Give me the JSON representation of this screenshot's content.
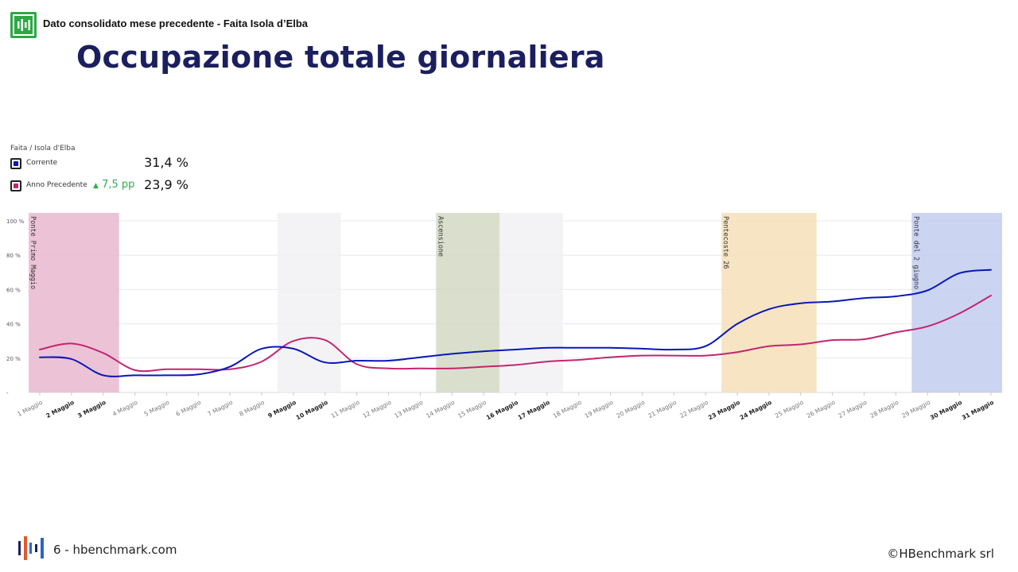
{
  "header": {
    "text": "Dato consolidato mese precedente - Faita Isola d’Elba",
    "title": "Occupazione totale giornaliera"
  },
  "legend": {
    "title": "Faita / Isola d'Elba",
    "items": [
      {
        "label": "Corrente",
        "value": "31,4 %",
        "color": "#0a17b8",
        "delta": ""
      },
      {
        "label": "Anno Precedente",
        "value": "23,9 %",
        "color": "#c4246f",
        "delta": "7,5 pp",
        "delta_icon": "triangle-up-icon"
      }
    ]
  },
  "chart_data": {
    "type": "line",
    "x": [
      "1 Maggio",
      "2 Maggio",
      "3 Maggio",
      "4 Maggio",
      "5 Maggio",
      "6 Maggio",
      "7 Maggio",
      "8 Maggio",
      "9 Maggio",
      "10 Maggio",
      "11 Maggio",
      "12 Maggio",
      "13 Maggio",
      "14 Maggio",
      "15 Maggio",
      "16 Maggio",
      "17 Maggio",
      "18 Maggio",
      "19 Maggio",
      "20 Maggio",
      "21 Maggio",
      "22 Maggio",
      "23 Maggio",
      "24 Maggio",
      "25 Maggio",
      "26 Maggio",
      "27 Maggio",
      "28 Maggio",
      "29 Maggio",
      "30 Maggio",
      "31 Maggio"
    ],
    "bold_ticks": [
      "2 Maggio",
      "3 Maggio",
      "9 Maggio",
      "10 Maggio",
      "16 Maggio",
      "17 Maggio",
      "23 Maggio",
      "24 Maggio",
      "30 Maggio",
      "31 Maggio"
    ],
    "y_ticks": [
      {
        "v": 0,
        "label": "-"
      },
      {
        "v": 20,
        "label": "20 %"
      },
      {
        "v": 40,
        "label": "40 %"
      },
      {
        "v": 60,
        "label": "60 %"
      },
      {
        "v": 80,
        "label": "80 %"
      },
      {
        "v": 100,
        "label": "100 %"
      }
    ],
    "ylim": [
      0,
      100
    ],
    "grid": true,
    "series": [
      {
        "name": "Corrente",
        "color": "#0a17b8",
        "values": [
          20.5,
          19.5,
          10,
          10,
          10,
          10.5,
          15,
          25.5,
          25.5,
          17.5,
          18.5,
          18.5,
          20.5,
          22.5,
          24,
          25,
          26,
          26,
          26,
          25.5,
          25,
          27,
          40,
          48.5,
          52,
          53,
          55,
          56,
          59.5,
          69.5,
          71.5
        ]
      },
      {
        "name": "Anno Precedente",
        "color": "#c4246f",
        "values": [
          25,
          28.5,
          23,
          13,
          13.5,
          13.5,
          13.5,
          18,
          30,
          30.5,
          16.5,
          14,
          14,
          14,
          15,
          16,
          18,
          19,
          20.5,
          21.5,
          21.5,
          21.5,
          23.5,
          27,
          28,
          30.5,
          31,
          35,
          38.5,
          46,
          56.5
        ]
      }
    ],
    "bands": [
      {
        "from": "1 Maggio",
        "to": "3 Maggio",
        "color": "#e9b8cf",
        "label": "Ponte Primo Maggio"
      },
      {
        "from": "9 Maggio",
        "to": "10 Maggio",
        "color": "#f1f1f4",
        "label": ""
      },
      {
        "from": "14 Maggio",
        "to": "15 Maggio",
        "color": "#d2d9c3",
        "label": "Ascensione"
      },
      {
        "from": "16 Maggio",
        "to": "17 Maggio",
        "color": "#f1f1f4",
        "label": ""
      },
      {
        "from": "23 Maggio",
        "to": "25 Maggio",
        "color": "#f5dfb9",
        "label": "Pentecoste 26"
      },
      {
        "from": "29 Maggio",
        "to": "31 Maggio",
        "color": "#c2cdee",
        "label": "Ponte del 2 giugno"
      }
    ]
  },
  "footer": {
    "page": "6 - hbenchmark.com",
    "copyright": "©HBenchmark srl"
  }
}
